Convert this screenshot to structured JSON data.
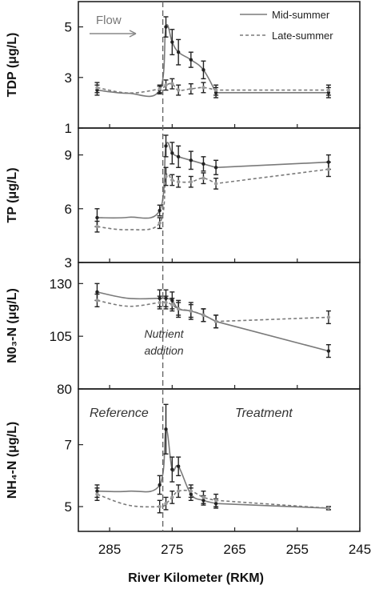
{
  "chart_data": {
    "type": "line",
    "xlabel": "River Kilometer (RKM)",
    "x_axis": {
      "range": [
        290,
        245
      ],
      "reversed": true,
      "ticks": [
        285,
        275,
        265,
        255,
        245
      ]
    },
    "legend": {
      "placement": "top-right",
      "entries": [
        {
          "name": "Mid-summer",
          "style": "solid"
        },
        {
          "name": "Late-summer",
          "style": "dashed"
        }
      ]
    },
    "series_style": {
      "mid": "#7a7a7a",
      "late": "#7a7a7a",
      "points": "#222222",
      "dashed_marker": "#999999"
    },
    "annotations": {
      "flow": "Flow",
      "nutrient_line_rkm": 276.5,
      "nutrient_label_1": "Nutrient",
      "nutrient_label_2": "addition",
      "reference": "Reference",
      "treatment": "Treatment"
    },
    "panels": [
      {
        "ylabel": "TDP (μg/L)",
        "ylim": [
          1,
          6
        ],
        "yticks": [
          1,
          3,
          5
        ],
        "series": [
          {
            "name": "Mid-summer",
            "style": "solid",
            "x": [
              287,
              277,
              276,
              275,
              274,
              272,
              270,
              268
            ],
            "y": [
              2.5,
              2.5,
              5.0,
              4.4,
              4.0,
              3.7,
              3.3,
              2.4
            ],
            "err": [
              0.2,
              0.15,
              0.4,
              0.5,
              0.5,
              0.3,
              0.35,
              0.2
            ]
          },
          {
            "name": "Late-summer",
            "style": "dashed",
            "x": [
              287,
              277,
              276,
              275,
              274,
              272,
              270,
              268
            ],
            "y": [
              2.6,
              2.55,
              2.7,
              2.75,
              2.5,
              2.55,
              2.6,
              2.5
            ],
            "err": [
              0.2,
              0.15,
              0.2,
              0.2,
              0.2,
              0.2,
              0.2,
              0.2
            ]
          }
        ],
        "end_point": {
          "x": 250,
          "mid": 2.4,
          "late": 2.5,
          "err": 0.2
        }
      },
      {
        "ylabel": "TP (μg/L)",
        "ylim": [
          3,
          10.5
        ],
        "yticks": [
          3,
          6,
          9
        ],
        "series": [
          {
            "name": "Mid-summer",
            "style": "solid",
            "x": [
              287,
              277,
              276,
              275,
              274,
              272,
              270,
              268
            ],
            "y": [
              5.5,
              5.9,
              9.5,
              9.1,
              8.9,
              8.7,
              8.5,
              8.3
            ],
            "err": [
              0.5,
              0.3,
              0.6,
              0.6,
              0.6,
              0.5,
              0.4,
              0.4
            ]
          },
          {
            "name": "Late-summer",
            "style": "dashed",
            "x": [
              287,
              277,
              276,
              275,
              274,
              272,
              270,
              268
            ],
            "y": [
              5.0,
              5.2,
              7.8,
              7.6,
              7.5,
              7.5,
              7.7,
              7.4
            ],
            "err": [
              0.3,
              0.3,
              0.5,
              0.3,
              0.3,
              0.3,
              0.3,
              0.3
            ]
          }
        ],
        "end_point": {
          "x": 250,
          "mid": 8.6,
          "late": 8.2,
          "err": 0.4
        }
      },
      {
        "ylabel": "N0₃-N (μg/L)",
        "ylim": [
          80,
          140
        ],
        "yticks": [
          80,
          105,
          130
        ],
        "series": [
          {
            "name": "Mid-summer",
            "style": "solid",
            "x": [
              287,
              277,
              276,
              275,
              274,
              272,
              270,
              268
            ],
            "y": [
              126,
              123,
              123,
              122,
              118,
              117,
              115,
              112
            ],
            "err": [
              4,
              4,
              4,
              4,
              4,
              4,
              3,
              3
            ]
          },
          {
            "name": "Late-summer",
            "style": "dashed",
            "x": [
              287,
              277,
              276,
              275,
              274,
              272,
              270,
              268
            ],
            "y": [
              122,
              121,
              121,
              120,
              118,
              117,
              115,
              112
            ],
            "err": [
              3,
              3,
              3,
              3,
              3,
              3,
              3,
              3
            ]
          }
        ],
        "end_point": {
          "x": 250,
          "mid": 98,
          "late": 114,
          "err": 3
        }
      },
      {
        "ylabel": "NH₄-N (μg/L)",
        "ylim": [
          4.2,
          8.8
        ],
        "yticks": [
          5,
          7
        ],
        "series": [
          {
            "name": "Mid-summer",
            "style": "solid",
            "x": [
              287,
              277,
              276,
              275,
              274,
              272,
              270,
              268
            ],
            "y": [
              5.5,
              5.7,
              7.5,
              6.2,
              6.3,
              5.4,
              5.2,
              5.1
            ],
            "err": [
              0.2,
              0.3,
              0.8,
              0.4,
              0.3,
              0.2,
              0.15,
              0.15
            ]
          },
          {
            "name": "Late-summer",
            "style": "dashed",
            "x": [
              287,
              277,
              276,
              275,
              274,
              272,
              270,
              268
            ],
            "y": [
              5.4,
              5.0,
              5.1,
              5.3,
              5.5,
              5.5,
              5.3,
              5.2
            ],
            "err": [
              0.2,
              0.2,
              0.2,
              0.2,
              0.2,
              0.2,
              0.2,
              0.2
            ]
          }
        ],
        "end_point": {
          "x": 250,
          "mid": 4.95,
          "late": 4.95,
          "err": 0.05
        }
      }
    ]
  }
}
